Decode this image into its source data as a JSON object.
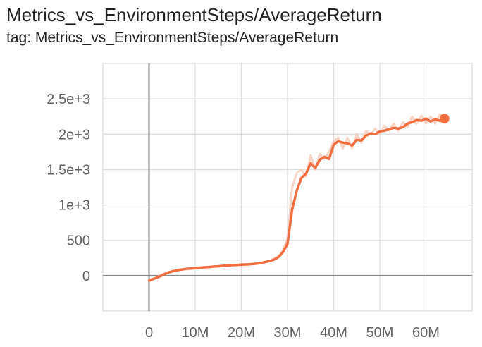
{
  "chart_data": {
    "type": "line",
    "title": "Metrics_vs_EnvironmentSteps/AverageReturn",
    "subtitle": "tag: Metrics_vs_EnvironmentSteps/AverageReturn",
    "xlabel": "",
    "ylabel": "",
    "xlim": [
      -10000000,
      70000000
    ],
    "ylim": [
      -500,
      3000
    ],
    "x_ticks": [
      {
        "value": 0,
        "label": "0"
      },
      {
        "value": 10000000,
        "label": "10M"
      },
      {
        "value": 20000000,
        "label": "20M"
      },
      {
        "value": 30000000,
        "label": "30M"
      },
      {
        "value": 40000000,
        "label": "40M"
      },
      {
        "value": 50000000,
        "label": "50M"
      },
      {
        "value": 60000000,
        "label": "60M"
      }
    ],
    "y_ticks": [
      {
        "value": 0,
        "label": "0"
      },
      {
        "value": 500,
        "label": "500"
      },
      {
        "value": 1000,
        "label": "1e+3"
      },
      {
        "value": 1500,
        "label": "1.5e+3"
      },
      {
        "value": 2000,
        "label": "2e+3"
      },
      {
        "value": 2500,
        "label": "2.5e+3"
      }
    ],
    "grid": true,
    "line_color": "#f26e3f",
    "raw_color": "#f7c8b8",
    "series": [
      {
        "x": [
          0,
          1000000,
          2000000,
          3000000,
          4000000,
          5000000,
          6000000,
          7000000,
          8000000,
          9000000,
          10000000,
          11000000,
          12000000,
          13000000,
          14000000,
          15000000,
          16000000,
          17000000,
          18000000,
          19000000,
          20000000,
          21000000,
          22000000,
          23000000,
          24000000,
          25000000,
          26000000,
          27000000,
          28000000,
          29000000,
          30000000,
          31000000,
          32000000,
          33000000,
          34000000,
          35000000,
          36000000,
          37000000,
          38000000,
          39000000,
          40000000,
          41000000,
          42000000,
          43000000,
          44000000,
          45000000,
          46000000,
          47000000,
          48000000,
          49000000,
          50000000,
          51000000,
          52000000,
          53000000,
          54000000,
          55000000,
          56000000,
          57000000,
          58000000,
          59000000,
          60000000,
          61000000,
          62000000,
          63000000,
          64000000
        ],
        "values": [
          -70,
          -45,
          -20,
          10,
          40,
          60,
          75,
          85,
          95,
          100,
          105,
          112,
          118,
          122,
          128,
          132,
          140,
          145,
          148,
          150,
          155,
          158,
          162,
          168,
          175,
          190,
          205,
          225,
          260,
          330,
          450,
          930,
          1200,
          1380,
          1440,
          1590,
          1520,
          1640,
          1680,
          1650,
          1850,
          1900,
          1880,
          1870,
          1840,
          1920,
          1910,
          1980,
          2010,
          2000,
          2040,
          2050,
          2070,
          2090,
          2080,
          2100,
          2150,
          2170,
          2200,
          2190,
          2220,
          2180,
          2210,
          2190,
          2220
        ]
      }
    ],
    "raw_series": [
      {
        "x": [
          0,
          1000000,
          2000000,
          3000000,
          4000000,
          5000000,
          6000000,
          7000000,
          8000000,
          9000000,
          10000000,
          11000000,
          12000000,
          13000000,
          14000000,
          15000000,
          16000000,
          17000000,
          18000000,
          19000000,
          20000000,
          21000000,
          22000000,
          23000000,
          24000000,
          25000000,
          26000000,
          27000000,
          28000000,
          29000000,
          30000000,
          31000000,
          32000000,
          33000000,
          34000000,
          35000000,
          36000000,
          37000000,
          38000000,
          39000000,
          40000000,
          41000000,
          42000000,
          43000000,
          44000000,
          45000000,
          46000000,
          47000000,
          48000000,
          49000000,
          50000000,
          51000000,
          52000000,
          53000000,
          54000000,
          55000000,
          56000000,
          57000000,
          58000000,
          59000000,
          60000000,
          61000000,
          62000000,
          63000000,
          64000000
        ],
        "values": [
          -80,
          -50,
          -10,
          20,
          50,
          55,
          80,
          90,
          90,
          105,
          100,
          115,
          120,
          118,
          130,
          135,
          138,
          150,
          145,
          152,
          160,
          155,
          165,
          170,
          180,
          195,
          200,
          240,
          270,
          360,
          520,
          1250,
          1450,
          1500,
          1400,
          1700,
          1500,
          1720,
          1650,
          1750,
          1900,
          1950,
          1800,
          1950,
          1800,
          2000,
          1880,
          2050,
          2000,
          2080,
          2000,
          2120,
          2050,
          2150,
          2050,
          2170,
          2100,
          2250,
          2150,
          2260,
          2150,
          2250,
          2150,
          2280,
          2200
        ]
      }
    ],
    "last_point": {
      "x": 64000000,
      "value": 2220
    }
  }
}
